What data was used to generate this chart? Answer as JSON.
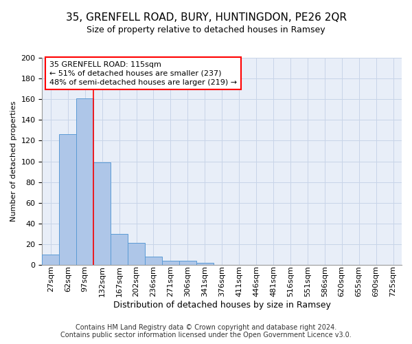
{
  "title1": "35, GRENFELL ROAD, BURY, HUNTINGDON, PE26 2QR",
  "title2": "Size of property relative to detached houses in Ramsey",
  "xlabel": "Distribution of detached houses by size in Ramsey",
  "ylabel": "Number of detached properties",
  "footer1": "Contains HM Land Registry data © Crown copyright and database right 2024.",
  "footer2": "Contains public sector information licensed under the Open Government Licence v3.0.",
  "bar_labels": [
    "27sqm",
    "62sqm",
    "97sqm",
    "132sqm",
    "167sqm",
    "202sqm",
    "236sqm",
    "271sqm",
    "306sqm",
    "341sqm",
    "376sqm",
    "411sqm",
    "446sqm",
    "481sqm",
    "516sqm",
    "551sqm",
    "586sqm",
    "620sqm",
    "655sqm",
    "690sqm",
    "725sqm"
  ],
  "bar_values": [
    10,
    126,
    161,
    99,
    30,
    21,
    8,
    4,
    4,
    2,
    0,
    0,
    0,
    0,
    0,
    0,
    0,
    0,
    0,
    0,
    0
  ],
  "bar_color": "#aec6e8",
  "bar_edge_color": "#5b9bd5",
  "ref_line_x": 2.5,
  "annotation_line1": "35 GRENFELL ROAD: 115sqm",
  "annotation_line2": "← 51% of detached houses are smaller (237)",
  "annotation_line3": "48% of semi-detached houses are larger (219) →",
  "ylim": [
    0,
    200
  ],
  "yticks": [
    0,
    20,
    40,
    60,
    80,
    100,
    120,
    140,
    160,
    180,
    200
  ],
  "grid_color": "#c8d4e8",
  "background_color": "#e8eef8",
  "title1_fontsize": 11,
  "title2_fontsize": 9,
  "ylabel_fontsize": 8,
  "xlabel_fontsize": 9,
  "tick_fontsize": 8,
  "footer_fontsize": 7
}
